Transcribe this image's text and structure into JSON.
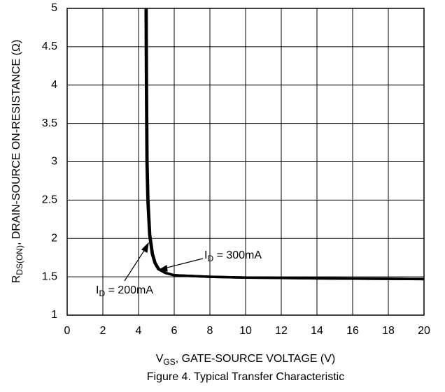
{
  "chart_data": {
    "type": "line",
    "title": "Figure 4. Typical Transfer Characteristic",
    "x_label": {
      "main": "V",
      "sub": "GS",
      "rest": ", GATE-SOURCE VOLTAGE (V)"
    },
    "y_label": {
      "main": "R",
      "sub": "DS(ON)",
      "rest": ", DRAIN-SOURCE ON-RESISTANCE (Ω)"
    },
    "xlim": [
      0,
      20
    ],
    "ylim": [
      1,
      5
    ],
    "xticks": [
      0,
      2,
      4,
      6,
      8,
      10,
      12,
      14,
      16,
      18,
      20
    ],
    "yticks": [
      1,
      1.5,
      2,
      2.5,
      3,
      3.5,
      4,
      4.5,
      5
    ],
    "grid": true,
    "series": [
      {
        "name": "I_D = 200mA",
        "color": "#000000",
        "x": [
          4.4,
          4.42,
          4.45,
          4.5,
          4.6,
          4.75,
          4.9,
          5.1,
          5.5,
          6,
          8,
          10,
          14,
          20
        ],
        "values": [
          5,
          4,
          3,
          2.5,
          2.05,
          1.8,
          1.68,
          1.6,
          1.55,
          1.52,
          1.5,
          1.49,
          1.48,
          1.47
        ]
      },
      {
        "name": "I_D = 300mA",
        "color": "#000000",
        "x": [
          4.45,
          4.47,
          4.5,
          4.55,
          4.65,
          4.8,
          4.95,
          5.15,
          5.55,
          6,
          8,
          10,
          14,
          20
        ],
        "values": [
          5,
          4,
          3,
          2.5,
          2.05,
          1.8,
          1.68,
          1.6,
          1.55,
          1.52,
          1.5,
          1.49,
          1.48,
          1.47
        ]
      }
    ],
    "annotations": [
      {
        "main": "I",
        "sub": "D",
        "rest": " = 200mA"
      },
      {
        "main": "I",
        "sub": "D",
        "rest": " = 300mA"
      }
    ]
  }
}
